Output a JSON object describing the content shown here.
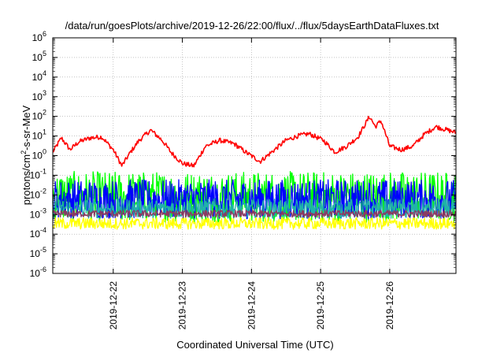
{
  "chart_data": {
    "type": "line",
    "title": "/data/run/goesPlots/archive/2019-12-26/22:00/flux/../flux/5daysEarthDataFluxes.txt",
    "xlabel": "Coordinated Universal Time (UTC)",
    "ylabel": {
      "base": "protons/cm",
      "sup": "2",
      "rest": "-s-sr-MeV"
    },
    "yscale": "log",
    "ylim": [
      1e-06,
      1000000.0
    ],
    "xlim": [
      "2019-12-21T03:00",
      "2019-12-26T23:00"
    ],
    "grid": true,
    "x_ticks": [
      "2019-12-22",
      "2019-12-23",
      "2019-12-24",
      "2019-12-25",
      "2019-12-26"
    ],
    "y_ticks": [
      {
        "base": "10",
        "exp": "-6"
      },
      {
        "base": "10",
        "exp": "-5"
      },
      {
        "base": "10",
        "exp": "-4"
      },
      {
        "base": "10",
        "exp": "-3"
      },
      {
        "base": "10",
        "exp": "-2"
      },
      {
        "base": "10",
        "exp": "-1"
      },
      {
        "base": "10",
        "exp": "0"
      },
      {
        "base": "10",
        "exp": "1"
      },
      {
        "base": "10",
        "exp": "2"
      },
      {
        "base": "10",
        "exp": "3"
      },
      {
        "base": "10",
        "exp": "4"
      },
      {
        "base": "10",
        "exp": "5"
      },
      {
        "base": "10",
        "exp": "6"
      }
    ],
    "series": [
      {
        "color": "#ff0000",
        "noise": 0.12,
        "x": [
          "2019-12-21T03:00",
          "2019-12-21T06:00",
          "2019-12-21T09:00",
          "2019-12-21T12:00",
          "2019-12-21T16:00",
          "2019-12-21T20:00",
          "2019-12-22T00:00",
          "2019-12-22T03:00",
          "2019-12-22T06:00",
          "2019-12-22T09:00",
          "2019-12-22T13:00",
          "2019-12-22T17:00",
          "2019-12-22T20:00",
          "2019-12-23T00:00",
          "2019-12-23T04:00",
          "2019-12-23T08:00",
          "2019-12-23T13:00",
          "2019-12-23T18:00",
          "2019-12-23T22:00",
          "2019-12-24T03:00",
          "2019-12-24T08:00",
          "2019-12-24T12:00",
          "2019-12-24T16:00",
          "2019-12-24T20:00",
          "2019-12-25T01:00",
          "2019-12-25T05:00",
          "2019-12-25T09:00",
          "2019-12-25T13:00",
          "2019-12-25T17:00",
          "2019-12-25T19:00",
          "2019-12-25T21:00",
          "2019-12-26T00:00",
          "2019-12-26T04:00",
          "2019-12-26T08:00",
          "2019-12-26T12:00",
          "2019-12-26T16:00",
          "2019-12-26T20:00",
          "2019-12-26T23:00"
        ],
        "y": [
          1.5,
          8,
          2,
          5,
          8,
          9,
          2,
          0.3,
          1.5,
          6,
          20,
          6,
          1.5,
          0.4,
          0.3,
          3,
          6,
          4,
          1.5,
          0.5,
          2,
          6,
          10,
          13,
          6,
          1.5,
          3,
          9,
          100,
          30,
          60,
          3,
          2,
          3,
          12,
          30,
          20,
          15
        ]
      },
      {
        "color": "#00ff00",
        "noise": 1.3,
        "center": 0.008,
        "x": [
          "2019-12-21T03:00",
          "2019-12-26T23:00"
        ],
        "y": [
          0.008,
          0.008
        ]
      },
      {
        "color": "#0000ff",
        "noise": 1.0,
        "center": 0.006,
        "x": [
          "2019-12-21T03:00",
          "2019-12-26T23:00"
        ],
        "y": [
          0.006,
          0.006
        ]
      },
      {
        "color": "#20b2aa",
        "noise": 0.5,
        "center": 0.002,
        "x": [
          "2019-12-21T03:00",
          "2019-12-26T23:00"
        ],
        "y": [
          0.002,
          0.002
        ]
      },
      {
        "color": "#8b3a62",
        "noise": 0.18,
        "center": 0.0011,
        "x": [
          "2019-12-21T03:00",
          "2019-12-26T23:00"
        ],
        "y": [
          0.0011,
          0.0011
        ]
      },
      {
        "color": "#ffff00",
        "noise": 0.3,
        "center": 0.00035,
        "x": [
          "2019-12-21T03:00",
          "2019-12-26T23:00"
        ],
        "y": [
          0.00035,
          0.00035
        ]
      }
    ]
  }
}
